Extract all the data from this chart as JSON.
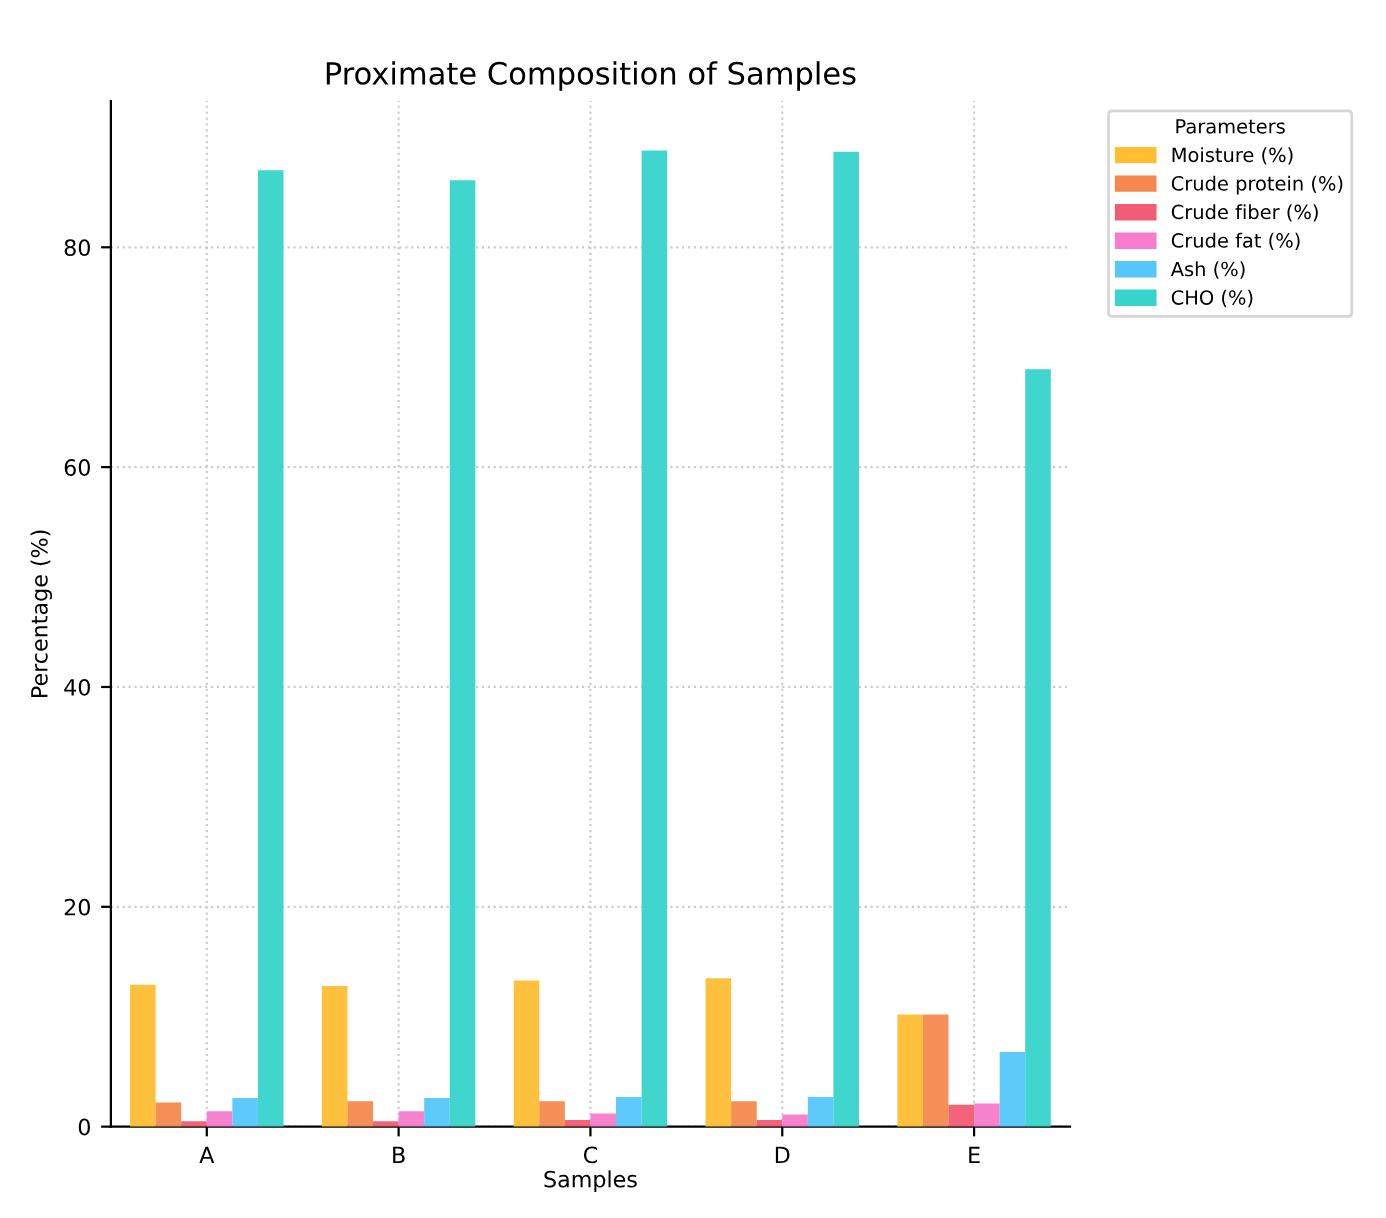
{
  "chart_data": {
    "type": "bar",
    "title": "Proximate Composition of Samples",
    "xlabel": "Samples",
    "ylabel": "Percentage (%)",
    "legend_title": "Parameters",
    "categories": [
      "A",
      "B",
      "C",
      "D",
      "E"
    ],
    "series": [
      {
        "name": "Moisture (%)",
        "color": "#ffbe33",
        "values": [
          12.9,
          12.8,
          13.3,
          13.5,
          10.2
        ]
      },
      {
        "name": "Crude protein (%)",
        "color": "#f5884f",
        "values": [
          2.2,
          2.3,
          2.3,
          2.3,
          10.2
        ]
      },
      {
        "name": "Crude fiber (%)",
        "color": "#f25c74",
        "values": [
          0.5,
          0.5,
          0.6,
          0.6,
          2.0
        ]
      },
      {
        "name": "Crude fat (%)",
        "color": "#f77ccb",
        "values": [
          1.4,
          1.4,
          1.2,
          1.1,
          2.1
        ]
      },
      {
        "name": "Ash (%)",
        "color": "#55c7fb",
        "values": [
          2.6,
          2.6,
          2.7,
          2.7,
          6.8
        ]
      },
      {
        "name": "CHO (%)",
        "color": "#36d4cb",
        "values": [
          87.0,
          86.1,
          88.8,
          88.7,
          68.9
        ]
      }
    ],
    "ylim": [
      0,
      93.3
    ],
    "yticks": [
      0,
      20,
      40,
      60,
      80
    ],
    "grid": true,
    "legend": "top right"
  }
}
